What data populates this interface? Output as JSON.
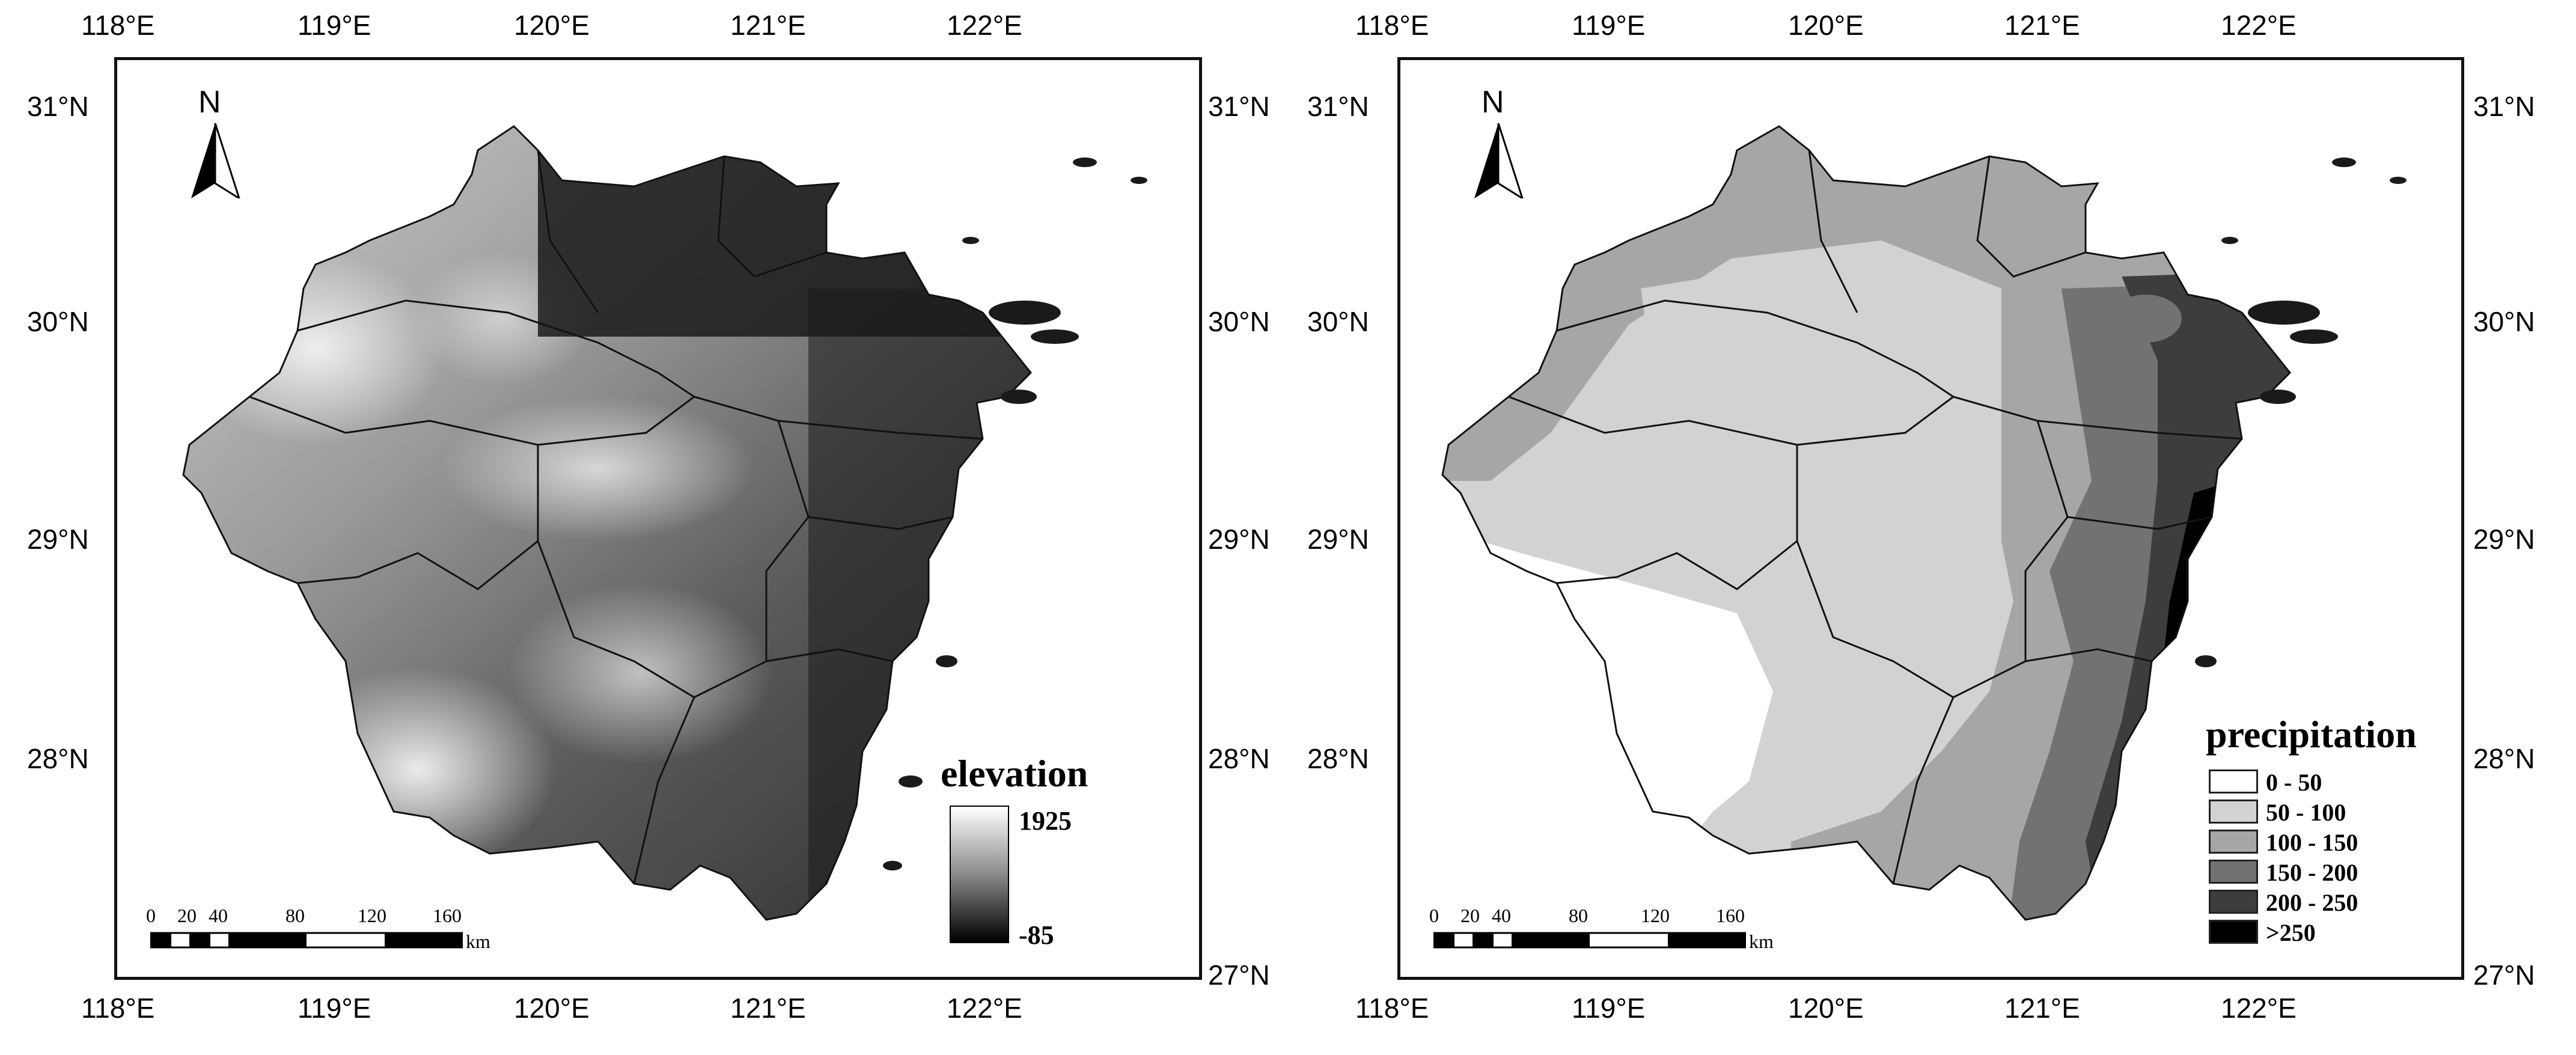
{
  "axes": {
    "longitude_labels": [
      "118°E",
      "119°E",
      "120°E",
      "121°E",
      "122°E"
    ],
    "latitude_labels": [
      "31°N",
      "30°N",
      "29°N",
      "28°N",
      "27°N"
    ]
  },
  "north_arrow": {
    "letter": "N"
  },
  "scale_bar": {
    "ticks": [
      "0",
      "20",
      "40",
      "80",
      "120",
      "160"
    ],
    "unit": "km"
  },
  "left_map": {
    "legend_title": "elevation",
    "max_label": "1925",
    "min_label": "-85"
  },
  "right_map": {
    "legend_title": "precipitation",
    "classes": [
      {
        "label": "0 - 50",
        "color": "#ffffff"
      },
      {
        "label": "50 - 100",
        "color": "#d2d2d2"
      },
      {
        "label": "100 - 150",
        "color": "#a6a6a6"
      },
      {
        "label": "150 - 200",
        "color": "#727272"
      },
      {
        "label": "200 - 250",
        "color": "#3d3d3d"
      },
      {
        "label": ">250",
        "color": "#000000"
      }
    ]
  }
}
